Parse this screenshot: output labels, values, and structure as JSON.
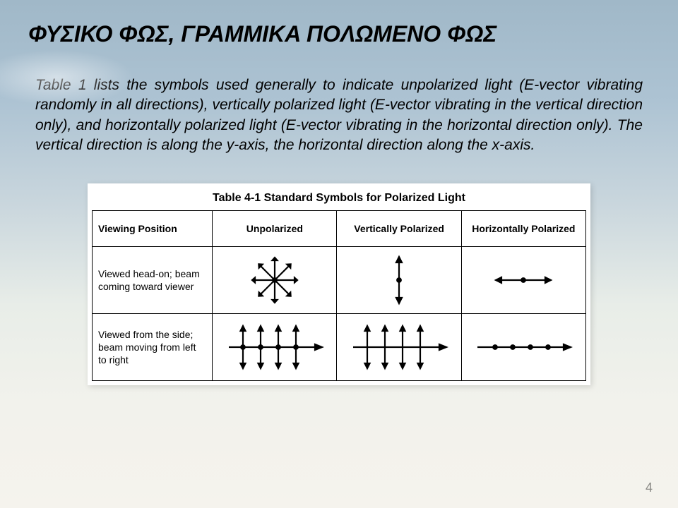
{
  "title": "ΦΥΣΙΚΟ ΦΩΣ, ΓΡΑΜΜΙΚΑ ΠΟΛΩΜΕΝΟ ΦΩΣ",
  "body": "Table 1 lists the symbols used generally to indicate unpolarized light (E-vector vibrating randomly in all directions), vertically polarized light (E-vector vibrating in the vertical direction only), and horizontally polarized light (E-vector vibrating in the horizontal direction only). The vertical direction is along the y-axis, the horizontal direction along the x-axis.",
  "page_number": "4",
  "table": {
    "title": "Table 4-1  Standard Symbols for Polarized Light",
    "columns": [
      "Viewing Position",
      "Unpolarized",
      "Vertically Polarized",
      "Horizontally Polarized"
    ],
    "rows": [
      {
        "label": "Viewed head-on; beam coming toward viewer",
        "cells": [
          "unpol_headon",
          "vert_headon",
          "horiz_headon"
        ]
      },
      {
        "label": "Viewed from the side; beam moving from left to right",
        "cells": [
          "unpol_side",
          "vert_side",
          "horiz_side"
        ]
      }
    ],
    "col_widths": [
      "170px",
      "176px",
      "176px",
      "176px"
    ],
    "stroke": "#000000",
    "stroke_width": 2.2,
    "dot_radius": 2.8
  }
}
